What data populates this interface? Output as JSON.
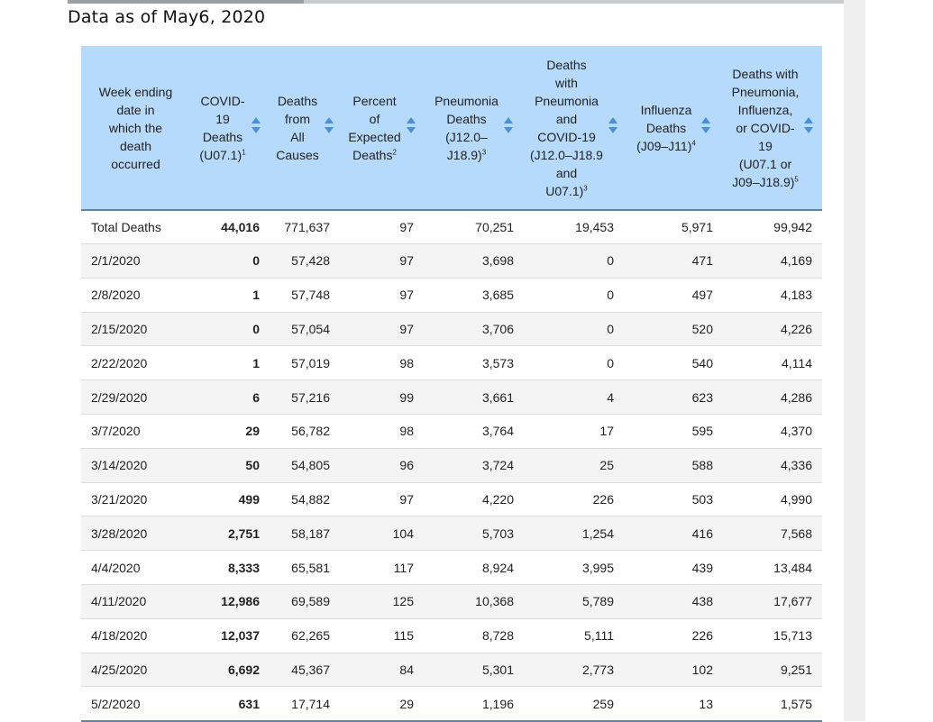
{
  "page": {
    "title": "Data as of May6, 2020"
  },
  "colors": {
    "header_bg": "#b6dafb",
    "sort_icon": "#4a90d9",
    "stripe": "#f4f4f4"
  },
  "table": {
    "columns": [
      {
        "lines": [
          "Week ending",
          "date in",
          "which the",
          "death",
          "occurred"
        ],
        "sup": ""
      },
      {
        "lines": [
          "COVID-",
          "19",
          "Deaths",
          "(U07.1)"
        ],
        "sup": "1"
      },
      {
        "lines": [
          "Deaths",
          "from",
          "All",
          "Causes"
        ],
        "sup": ""
      },
      {
        "lines": [
          "Percent",
          "of",
          "Expected",
          "Deaths"
        ],
        "sup": "2"
      },
      {
        "lines": [
          "Pneumonia",
          "Deaths",
          "(J12.0–",
          "J18.9)"
        ],
        "sup": "3"
      },
      {
        "lines": [
          "Deaths",
          "with",
          "Pneumonia",
          "and",
          "COVID-19",
          "(J12.0–J18.9",
          "and",
          "U07.1)"
        ],
        "sup": "3"
      },
      {
        "lines": [
          "Influenza",
          "Deaths",
          "(J09–J11)"
        ],
        "sup": "4"
      },
      {
        "lines": [
          "Deaths with",
          "Pneumonia,",
          "Influenza,",
          "or COVID-",
          "19",
          "(U07.1 or",
          "J09–J18.9)"
        ],
        "sup": "5"
      }
    ],
    "rows": [
      [
        "Total Deaths",
        "44,016",
        "771,637",
        "97",
        "70,251",
        "19,453",
        "5,971",
        "99,942"
      ],
      [
        "2/1/2020",
        "0",
        "57,428",
        "97",
        "3,698",
        "0",
        "471",
        "4,169"
      ],
      [
        "2/8/2020",
        "1",
        "57,748",
        "97",
        "3,685",
        "0",
        "497",
        "4,183"
      ],
      [
        "2/15/2020",
        "0",
        "57,054",
        "97",
        "3,706",
        "0",
        "520",
        "4,226"
      ],
      [
        "2/22/2020",
        "1",
        "57,019",
        "98",
        "3,573",
        "0",
        "540",
        "4,114"
      ],
      [
        "2/29/2020",
        "6",
        "57,216",
        "99",
        "3,661",
        "4",
        "623",
        "4,286"
      ],
      [
        "3/7/2020",
        "29",
        "56,782",
        "98",
        "3,764",
        "17",
        "595",
        "4,370"
      ],
      [
        "3/14/2020",
        "50",
        "54,805",
        "96",
        "3,724",
        "25",
        "588",
        "4,336"
      ],
      [
        "3/21/2020",
        "499",
        "54,882",
        "97",
        "4,220",
        "226",
        "503",
        "4,990"
      ],
      [
        "3/28/2020",
        "2,751",
        "58,187",
        "104",
        "5,703",
        "1,254",
        "416",
        "7,568"
      ],
      [
        "4/4/2020",
        "8,333",
        "65,581",
        "117",
        "8,924",
        "3,995",
        "439",
        "13,484"
      ],
      [
        "4/11/2020",
        "12,986",
        "69,589",
        "125",
        "10,368",
        "5,789",
        "438",
        "17,677"
      ],
      [
        "4/18/2020",
        "12,037",
        "62,265",
        "115",
        "8,728",
        "5,111",
        "226",
        "15,713"
      ],
      [
        "4/25/2020",
        "6,692",
        "45,367",
        "84",
        "5,301",
        "2,773",
        "102",
        "9,251"
      ],
      [
        "5/2/2020",
        "631",
        "17,714",
        "29",
        "1,196",
        "259",
        "13",
        "1,575"
      ]
    ]
  }
}
